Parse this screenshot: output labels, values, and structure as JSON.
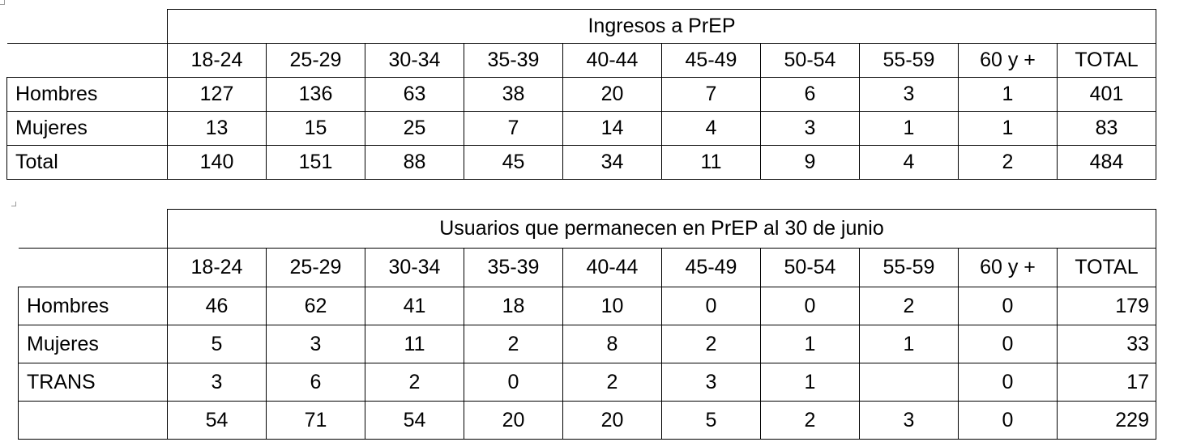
{
  "ingresos": {
    "title": "Ingresos a PrEP",
    "headers": [
      "18-24",
      "25-29",
      "30-34",
      "35-39",
      "40-44",
      "45-49",
      "50-54",
      "55-59",
      "60 y +",
      "TOTAL"
    ],
    "rows": [
      {
        "label": "Hombres",
        "values": [
          "127",
          "136",
          "63",
          "38",
          "20",
          "7",
          "6",
          "3",
          "1",
          "401"
        ]
      },
      {
        "label": "Mujeres",
        "values": [
          "13",
          "15",
          "25",
          "7",
          "14",
          "4",
          "3",
          "1",
          "1",
          "83"
        ]
      },
      {
        "label": "Total",
        "values": [
          "140",
          "151",
          "88",
          "45",
          "34",
          "11",
          "9",
          "4",
          "2",
          "484"
        ]
      }
    ]
  },
  "usuarios": {
    "title": "Usuarios que permanecen en PrEP al 30 de junio",
    "headers": [
      "18-24",
      "25-29",
      "30-34",
      "35-39",
      "40-44",
      "45-49",
      "50-54",
      "55-59",
      "60 y +",
      "TOTAL"
    ],
    "rows": [
      {
        "label": "Hombres",
        "values": [
          "46",
          "62",
          "41",
          "18",
          "10",
          "0",
          "0",
          "2",
          "0",
          "179"
        ]
      },
      {
        "label": "Mujeres",
        "values": [
          "5",
          "3",
          "11",
          "2",
          "8",
          "2",
          "1",
          "1",
          "0",
          "33"
        ]
      },
      {
        "label": "TRANS",
        "values": [
          "3",
          "6",
          "2",
          "0",
          "2",
          "3",
          "1",
          "",
          "0",
          "17"
        ]
      },
      {
        "label": "",
        "values": [
          "54",
          "71",
          "54",
          "20",
          "20",
          "5",
          "2",
          "3",
          "0",
          "229"
        ]
      }
    ]
  }
}
